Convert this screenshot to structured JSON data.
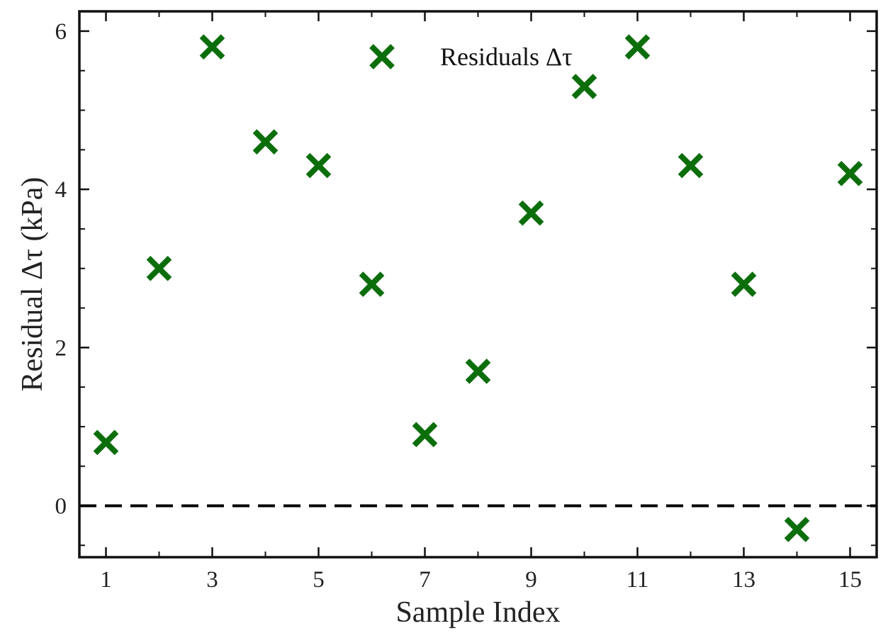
{
  "chart_data": {
    "type": "scatter",
    "xlabel": "Sample Index",
    "ylabel": "Residual Δτ (kPa)",
    "xlim": [
      0.5,
      15.5
    ],
    "ylim": [
      -0.65,
      6.25
    ],
    "xticks_major": [
      1,
      3,
      5,
      7,
      9,
      11,
      13,
      15
    ],
    "xticks_minor": [
      2,
      4,
      6,
      8,
      10,
      12,
      14
    ],
    "yticks_major": [
      0,
      2,
      4,
      6
    ],
    "yticks_minor": [
      -0.5,
      0.5,
      1,
      1.5,
      2.5,
      3,
      3.5,
      4.5,
      5,
      5.5
    ],
    "grid": false,
    "legend_position": "top-center",
    "reference_line": {
      "y": 0,
      "style": "dashed",
      "color": "#000000"
    },
    "series": [
      {
        "name": "Residuals Δτ",
        "marker": "x",
        "color": "#0b6e0b",
        "points": [
          {
            "x": 1,
            "y": 0.8
          },
          {
            "x": 2,
            "y": 3.0
          },
          {
            "x": 3,
            "y": 5.8
          },
          {
            "x": 4,
            "y": 4.6
          },
          {
            "x": 5,
            "y": 4.3
          },
          {
            "x": 6,
            "y": 2.8
          },
          {
            "x": 7,
            "y": 0.9
          },
          {
            "x": 8,
            "y": 1.7
          },
          {
            "x": 9,
            "y": 3.7
          },
          {
            "x": 10,
            "y": 5.3
          },
          {
            "x": 11,
            "y": 5.8
          },
          {
            "x": 12,
            "y": 4.3
          },
          {
            "x": 13,
            "y": 2.8
          },
          {
            "x": 14,
            "y": -0.3
          },
          {
            "x": 15,
            "y": 4.2
          }
        ]
      }
    ]
  }
}
